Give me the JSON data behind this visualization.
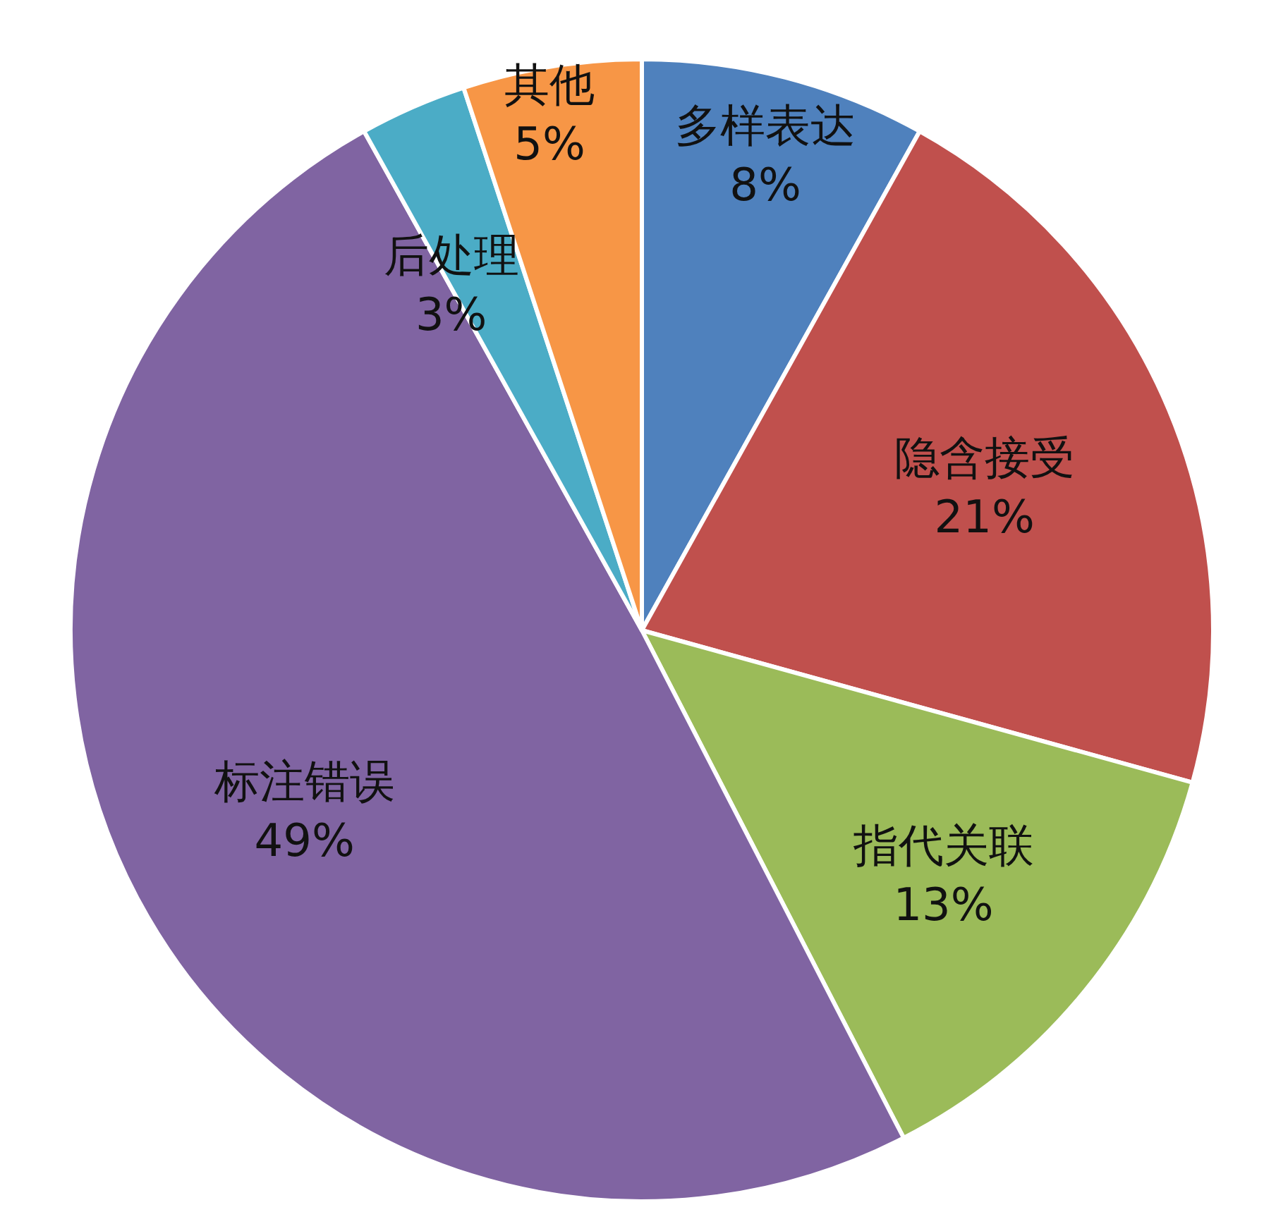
{
  "chart_data": {
    "type": "pie",
    "categories": [
      "多样表达",
      "隐含接受",
      "指代关联",
      "标注错误",
      "后处理",
      "其他"
    ],
    "values": [
      8,
      21,
      13,
      49,
      3,
      5
    ],
    "value_labels": [
      "8%",
      "21%",
      "13%",
      "49%",
      "3%",
      "5%"
    ],
    "colors": [
      "#4f81bd",
      "#c0504d",
      "#9bbb59",
      "#8064a2",
      "#4bacc6",
      "#f79646"
    ]
  }
}
